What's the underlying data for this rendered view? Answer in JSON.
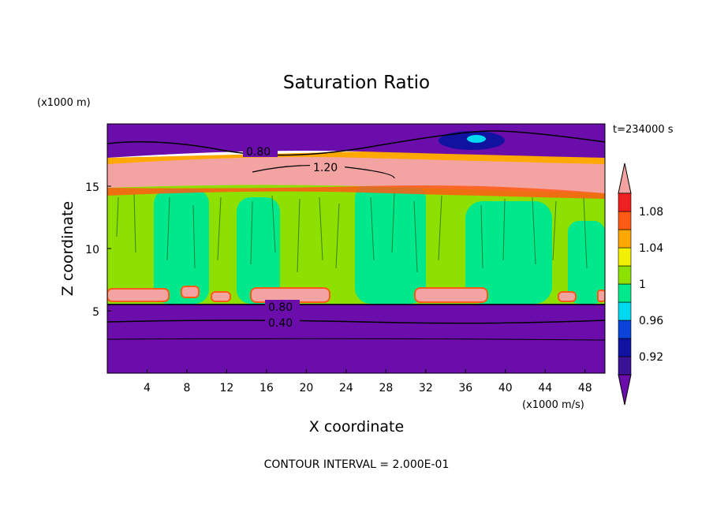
{
  "chart_data": {
    "type": "heatmap",
    "title": "Saturation Ratio",
    "xlabel": "X coordinate",
    "ylabel": "Z coordinate",
    "x_unit_label": "(x1000 m/s)",
    "y_unit_label": "(x1000 m)",
    "time_label": "t=234000 s",
    "footer": "CONTOUR INTERVAL = 2.000E-01",
    "xlim": [
      0,
      50
    ],
    "ylim": [
      0,
      20
    ],
    "x_ticks": [
      "4",
      "8",
      "12",
      "16",
      "20",
      "24",
      "28",
      "32",
      "36",
      "40",
      "44",
      "48"
    ],
    "y_ticks": [
      "5",
      "10",
      "15"
    ],
    "colorbar": {
      "labels": [
        "0.92",
        "0.96",
        "1",
        "1.04",
        "1.08"
      ],
      "levels": [
        0.9,
        0.92,
        0.94,
        0.96,
        0.98,
        1.0,
        1.02,
        1.04,
        1.06,
        1.08,
        1.1
      ],
      "colors": [
        "#6a0daa",
        "#3a1296",
        "#1212a0",
        "#0a44d8",
        "#00d8f0",
        "#00e88c",
        "#8ee000",
        "#f0f000",
        "#ffa800",
        "#ff5a14",
        "#ef2020",
        "#f4a3a3"
      ]
    },
    "contour_labels": [
      "0.80",
      "1.20",
      "0.80",
      "0.40"
    ],
    "contour_interval": 0.2,
    "layers": [
      {
        "z_bottom": 0,
        "z_top": 5.5,
        "value": "below 0.92"
      },
      {
        "z_bottom": 5.5,
        "z_top": 14.5,
        "value": "0.98-1.02"
      },
      {
        "z_bottom": 14.5,
        "z_top": 17,
        "value": "above 1.10"
      },
      {
        "z_bottom": 17,
        "z_top": 20,
        "value": "below 0.92"
      }
    ]
  }
}
